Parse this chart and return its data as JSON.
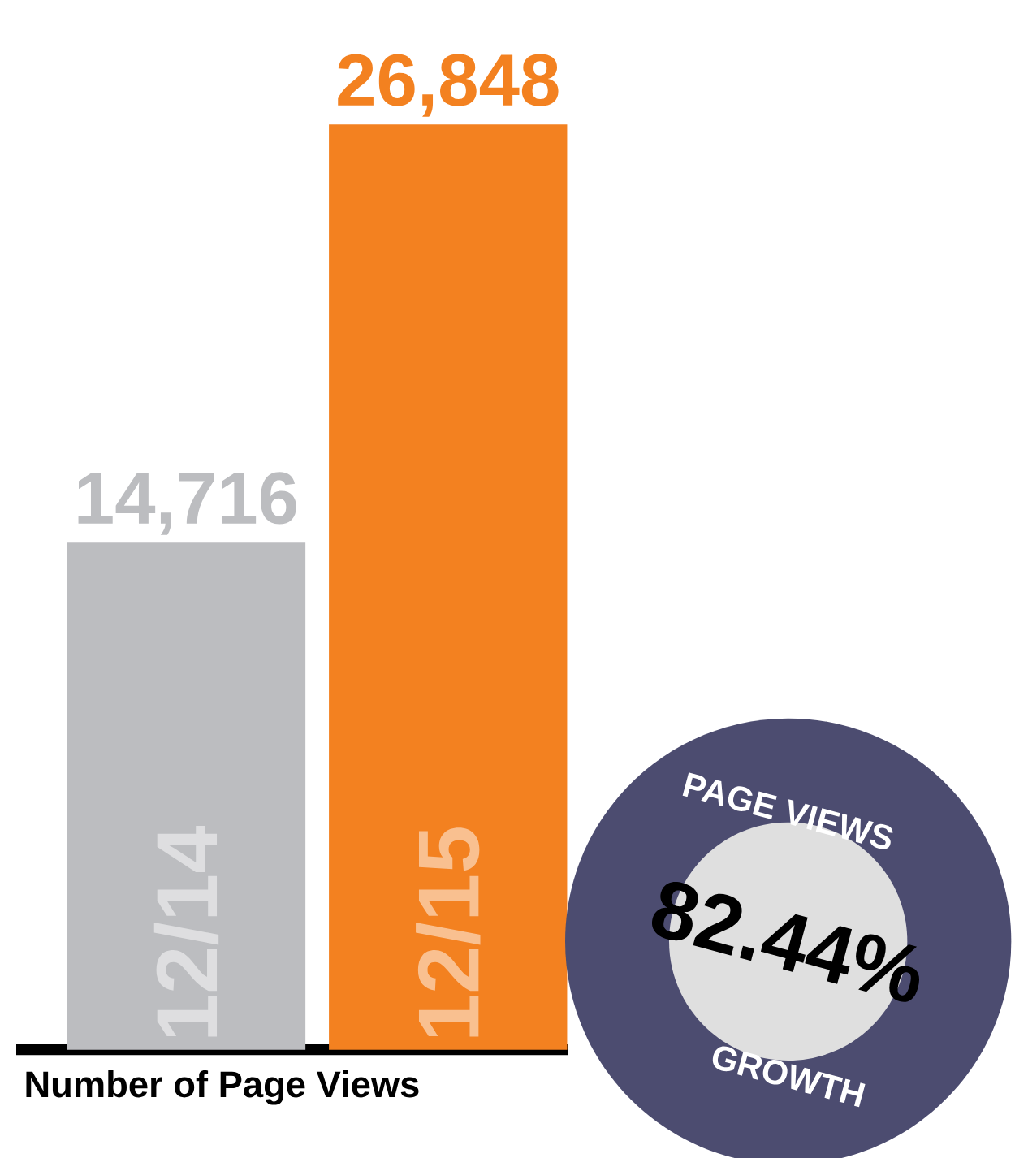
{
  "chart_data": {
    "type": "bar",
    "categories": [
      "12/14",
      "12/15"
    ],
    "values": [
      14716,
      26848
    ],
    "colors": [
      "#bcbdc0",
      "#f38120"
    ],
    "value_labels": [
      "14,716",
      "26,848"
    ],
    "xlabel": "Number of Page Views",
    "annotations": [
      "PAGE VIEWS",
      "82.44%",
      "GROWTH"
    ]
  }
}
